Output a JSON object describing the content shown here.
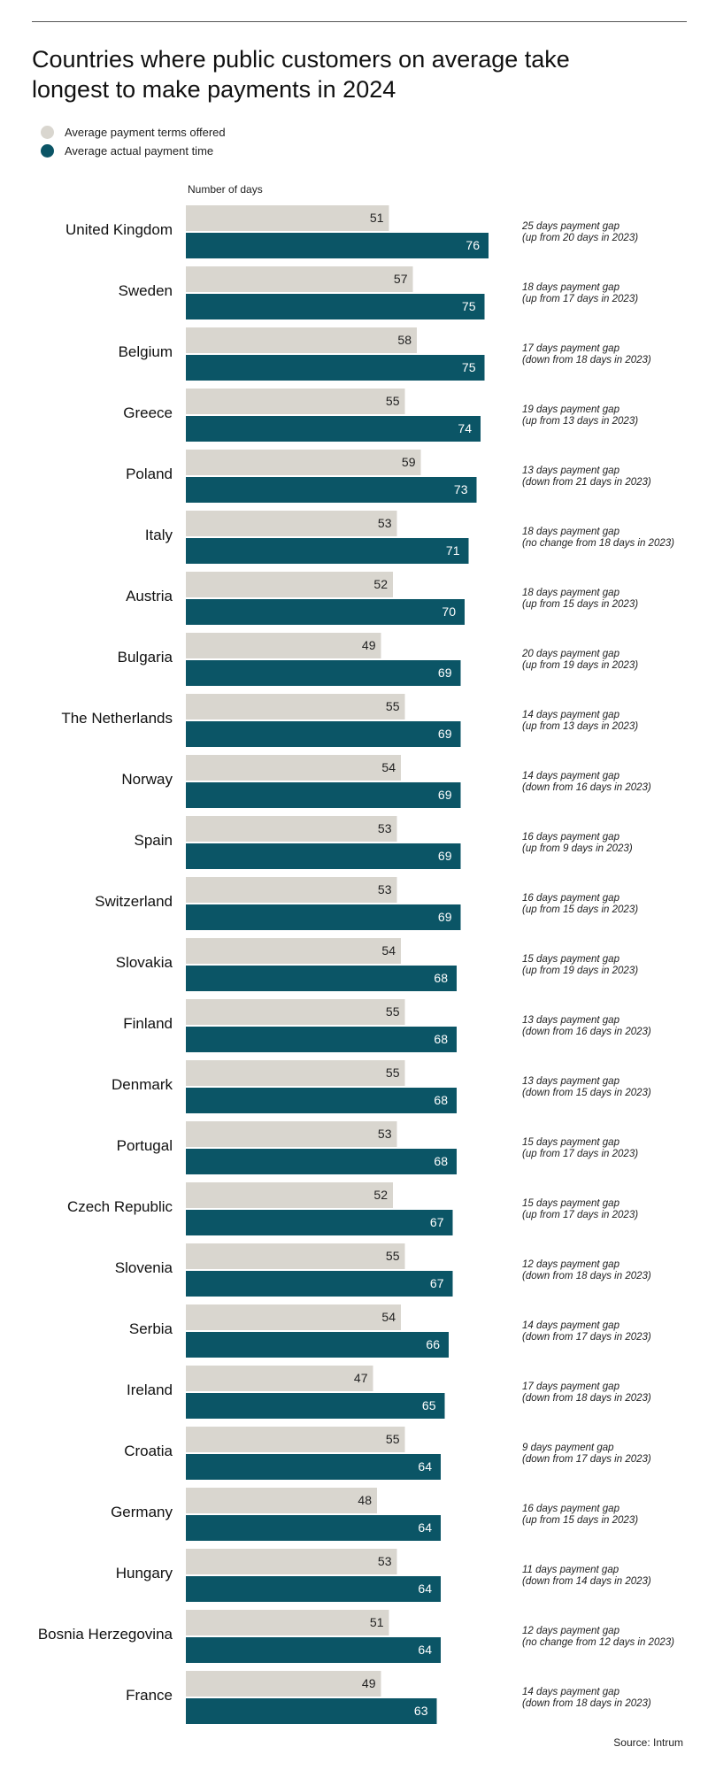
{
  "chart_data": {
    "type": "bar",
    "orientation": "horizontal",
    "title": "Countries where public customers on average take longest to make payments in 2024",
    "xlabel": "Number of days",
    "source": "Source: Intrum",
    "legend_position": "top-left",
    "grid": false,
    "colors": {
      "terms": "#d9d6cf",
      "actual": "#0b5566"
    },
    "categories": [
      "United Kingdom",
      "Sweden",
      "Belgium",
      "Greece",
      "Poland",
      "Italy",
      "Austria",
      "Bulgaria",
      "The Netherlands",
      "Norway",
      "Spain",
      "Switzerland",
      "Slovakia",
      "Finland",
      "Denmark",
      "Portugal",
      "Czech Republic",
      "Slovenia",
      "Serbia",
      "Ireland",
      "Croatia",
      "Germany",
      "Hungary",
      "Bosnia Herzegovina",
      "France"
    ],
    "series": [
      {
        "name": "Average payment terms offered",
        "values": [
          51,
          57,
          58,
          55,
          59,
          53,
          52,
          49,
          55,
          54,
          53,
          53,
          54,
          55,
          55,
          53,
          52,
          55,
          54,
          47,
          55,
          48,
          53,
          51,
          49
        ]
      },
      {
        "name": "Average actual payment time",
        "values": [
          76,
          75,
          75,
          74,
          73,
          71,
          70,
          69,
          69,
          69,
          69,
          69,
          68,
          68,
          68,
          68,
          67,
          67,
          66,
          65,
          64,
          64,
          64,
          64,
          63
        ]
      }
    ],
    "annotations": [
      [
        "25 days payment gap",
        "(up from 20 days in 2023)"
      ],
      [
        "18 days payment gap",
        "(up from 17 days in 2023)"
      ],
      [
        "17 days payment gap",
        "(down from 18 days in 2023)"
      ],
      [
        "19 days payment gap",
        "(up from 13 days in 2023)"
      ],
      [
        "13 days payment gap",
        "(down from 21 days in 2023)"
      ],
      [
        "18 days payment gap",
        "(no change from 18 days in 2023)"
      ],
      [
        "18 days payment gap",
        "(up from 15 days in 2023)"
      ],
      [
        "20 days payment gap",
        "(up from 19 days in 2023)"
      ],
      [
        "14 days payment gap",
        "(up from 13 days in 2023)"
      ],
      [
        "14 days payment gap",
        "(down from 16 days in 2023)"
      ],
      [
        "16 days payment gap",
        "(up from 9 days in 2023)"
      ],
      [
        "16 days payment gap",
        "(up from 15 days in 2023)"
      ],
      [
        "15 days payment gap",
        "(up from 19 days in 2023)"
      ],
      [
        "13 days payment gap",
        "(down from 16 days in 2023)"
      ],
      [
        "13 days payment gap",
        "(down from 15 days in 2023)"
      ],
      [
        "15 days payment gap",
        "(up from 17 days in 2023)"
      ],
      [
        "15 days payment gap",
        "(up from 17 days in 2023)"
      ],
      [
        "12 days payment gap",
        "(down from 18 days in 2023)"
      ],
      [
        "14 days payment gap",
        "(down from 17 days in 2023)"
      ],
      [
        "17 days payment gap",
        "(down from 18 days in 2023)"
      ],
      [
        "9 days payment gap",
        "(down from 17 days in 2023)"
      ],
      [
        "16 days payment gap",
        "(up from 15 days in 2023)"
      ],
      [
        "11 days payment gap",
        "(down from 14 days in 2023)"
      ],
      [
        "12 days payment gap",
        "(no change from 12 days in 2023)"
      ],
      [
        "14 days payment gap",
        "(down from 18 days in 2023)"
      ]
    ]
  }
}
